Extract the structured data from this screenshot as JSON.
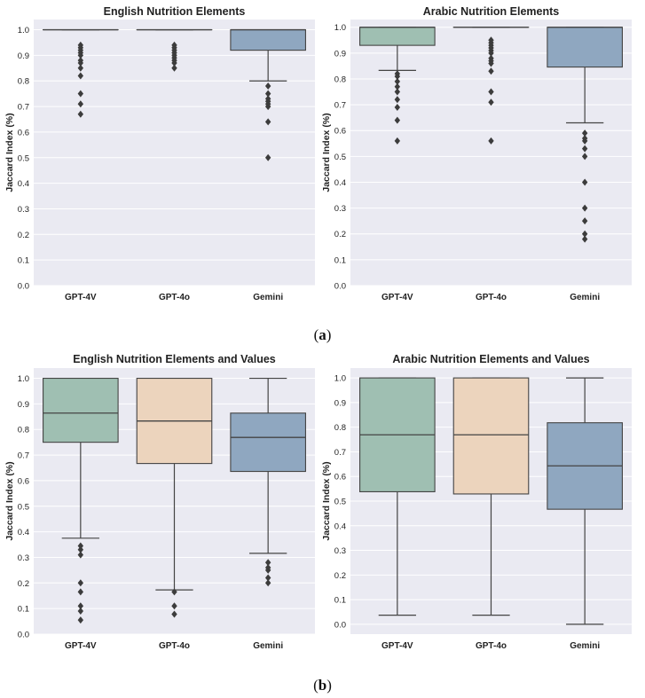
{
  "captions": {
    "a": "a",
    "b": "b"
  },
  "colors": {
    "background": "#eaeaf2",
    "grid": "#ffffff",
    "GPT-4V": "#9fbfb2",
    "GPT-4o": "#ecd4bd",
    "Gemini": "#8fa7c0",
    "line": "#444444",
    "flier": "#3c3c3c"
  },
  "chart_data": [
    {
      "type": "box",
      "title": "English Nutrition Elements",
      "xlabel": "",
      "ylabel": "Jaccard Index (%)",
      "categories": [
        "GPT-4V",
        "GPT-4o",
        "Gemini"
      ],
      "ylim": [
        0,
        1.04
      ],
      "yticks": [
        0.0,
        0.1,
        0.2,
        0.3,
        0.4,
        0.5,
        0.6,
        0.7,
        0.8,
        0.9,
        1.0
      ],
      "ytick_labels": [
        "0.0",
        "0.1",
        "0.2",
        "0.3",
        "0.4",
        "0.5",
        "0.6",
        "0.7",
        "0.8",
        "0.9",
        "1.0"
      ],
      "grid": true,
      "boxes": [
        {
          "name": "GPT-4V",
          "q1": 1.0,
          "median": 1.0,
          "q3": 1.0,
          "whisker_low": 1.0,
          "whisker_high": 1.0,
          "fliers": [
            0.94,
            0.93,
            0.92,
            0.91,
            0.9,
            0.88,
            0.87,
            0.85,
            0.82,
            0.75,
            0.71,
            0.67
          ]
        },
        {
          "name": "GPT-4o",
          "q1": 1.0,
          "median": 1.0,
          "q3": 1.0,
          "whisker_low": 1.0,
          "whisker_high": 1.0,
          "fliers": [
            0.94,
            0.93,
            0.92,
            0.91,
            0.9,
            0.89,
            0.88,
            0.87,
            0.85
          ]
        },
        {
          "name": "Gemini",
          "q1": 0.92,
          "median": 1.0,
          "q3": 1.0,
          "whisker_low": 0.8,
          "whisker_high": 1.0,
          "fliers": [
            0.78,
            0.75,
            0.73,
            0.72,
            0.71,
            0.7,
            0.64,
            0.5
          ]
        }
      ]
    },
    {
      "type": "box",
      "title": "Arabic Nutrition Elements",
      "xlabel": "",
      "ylabel": "Jaccard Index (%)",
      "categories": [
        "GPT-4V",
        "GPT-4o",
        "Gemini"
      ],
      "ylim": [
        0,
        1.03
      ],
      "yticks": [
        0.0,
        0.1,
        0.2,
        0.3,
        0.4,
        0.5,
        0.6,
        0.7,
        0.8,
        0.9,
        1.0
      ],
      "ytick_labels": [
        "0.0",
        "0.1",
        "0.2",
        "0.3",
        "0.4",
        "0.5",
        "0.6",
        "0.7",
        "0.8",
        "0.9",
        "1.0"
      ],
      "grid": true,
      "boxes": [
        {
          "name": "GPT-4V",
          "q1": 0.93,
          "median": 1.0,
          "q3": 1.0,
          "whisker_low": 0.833,
          "whisker_high": 1.0,
          "fliers": [
            0.82,
            0.81,
            0.79,
            0.77,
            0.75,
            0.72,
            0.69,
            0.64,
            0.56
          ]
        },
        {
          "name": "GPT-4o",
          "q1": 1.0,
          "median": 1.0,
          "q3": 1.0,
          "whisker_low": 1.0,
          "whisker_high": 1.0,
          "fliers": [
            0.95,
            0.94,
            0.93,
            0.92,
            0.91,
            0.9,
            0.88,
            0.87,
            0.86,
            0.83,
            0.75,
            0.71,
            0.56
          ]
        },
        {
          "name": "Gemini",
          "q1": 0.846,
          "median": 1.0,
          "q3": 1.0,
          "whisker_low": 0.63,
          "whisker_high": 1.0,
          "fliers": [
            0.59,
            0.57,
            0.56,
            0.53,
            0.5,
            0.4,
            0.3,
            0.25,
            0.2,
            0.18
          ]
        }
      ]
    },
    {
      "type": "box",
      "title": "English Nutrition Elements and Values",
      "xlabel": "",
      "ylabel": "Jaccard Index (%)",
      "categories": [
        "GPT-4V",
        "GPT-4o",
        "Gemini"
      ],
      "ylim": [
        0,
        1.04
      ],
      "yticks": [
        0.0,
        0.1,
        0.2,
        0.3,
        0.4,
        0.5,
        0.6,
        0.7,
        0.8,
        0.9,
        1.0
      ],
      "ytick_labels": [
        "0.0",
        "0.1",
        "0.2",
        "0.3",
        "0.4",
        "0.5",
        "0.6",
        "0.7",
        "0.8",
        "0.9",
        "1.0"
      ],
      "grid": true,
      "boxes": [
        {
          "name": "GPT-4V",
          "q1": 0.75,
          "median": 0.864,
          "q3": 1.0,
          "whisker_low": 0.375,
          "whisker_high": 1.0,
          "fliers": [
            0.345,
            0.33,
            0.31,
            0.2,
            0.165,
            0.11,
            0.09,
            0.055
          ]
        },
        {
          "name": "GPT-4o",
          "q1": 0.667,
          "median": 0.833,
          "q3": 1.0,
          "whisker_low": 0.173,
          "whisker_high": 1.0,
          "fliers": [
            0.165,
            0.11,
            0.078
          ]
        },
        {
          "name": "Gemini",
          "q1": 0.636,
          "median": 0.769,
          "q3": 0.864,
          "whisker_low": 0.316,
          "whisker_high": 1.0,
          "fliers": [
            0.28,
            0.26,
            0.25,
            0.22,
            0.2
          ]
        }
      ]
    },
    {
      "type": "box",
      "title": "Arabic Nutrition Elements and Values",
      "xlabel": "",
      "ylabel": "Jaccard Index (%)",
      "categories": [
        "GPT-4V",
        "GPT-4o",
        "Gemini"
      ],
      "ylim": [
        -0.04,
        1.04
      ],
      "yticks": [
        0.0,
        0.1,
        0.2,
        0.3,
        0.4,
        0.5,
        0.6,
        0.7,
        0.8,
        0.9,
        1.0
      ],
      "ytick_labels": [
        "0.0",
        "0.1",
        "0.2",
        "0.3",
        "0.4",
        "0.5",
        "0.6",
        "0.7",
        "0.8",
        "0.9",
        "1.0"
      ],
      "grid": true,
      "boxes": [
        {
          "name": "GPT-4V",
          "q1": 0.538,
          "median": 0.769,
          "q3": 1.0,
          "whisker_low": 0.037,
          "whisker_high": 1.0,
          "fliers": []
        },
        {
          "name": "GPT-4o",
          "q1": 0.529,
          "median": 0.769,
          "q3": 1.0,
          "whisker_low": 0.037,
          "whisker_high": 1.0,
          "fliers": []
        },
        {
          "name": "Gemini",
          "q1": 0.467,
          "median": 0.643,
          "q3": 0.818,
          "whisker_low": 0.0,
          "whisker_high": 1.0,
          "fliers": []
        }
      ]
    }
  ]
}
